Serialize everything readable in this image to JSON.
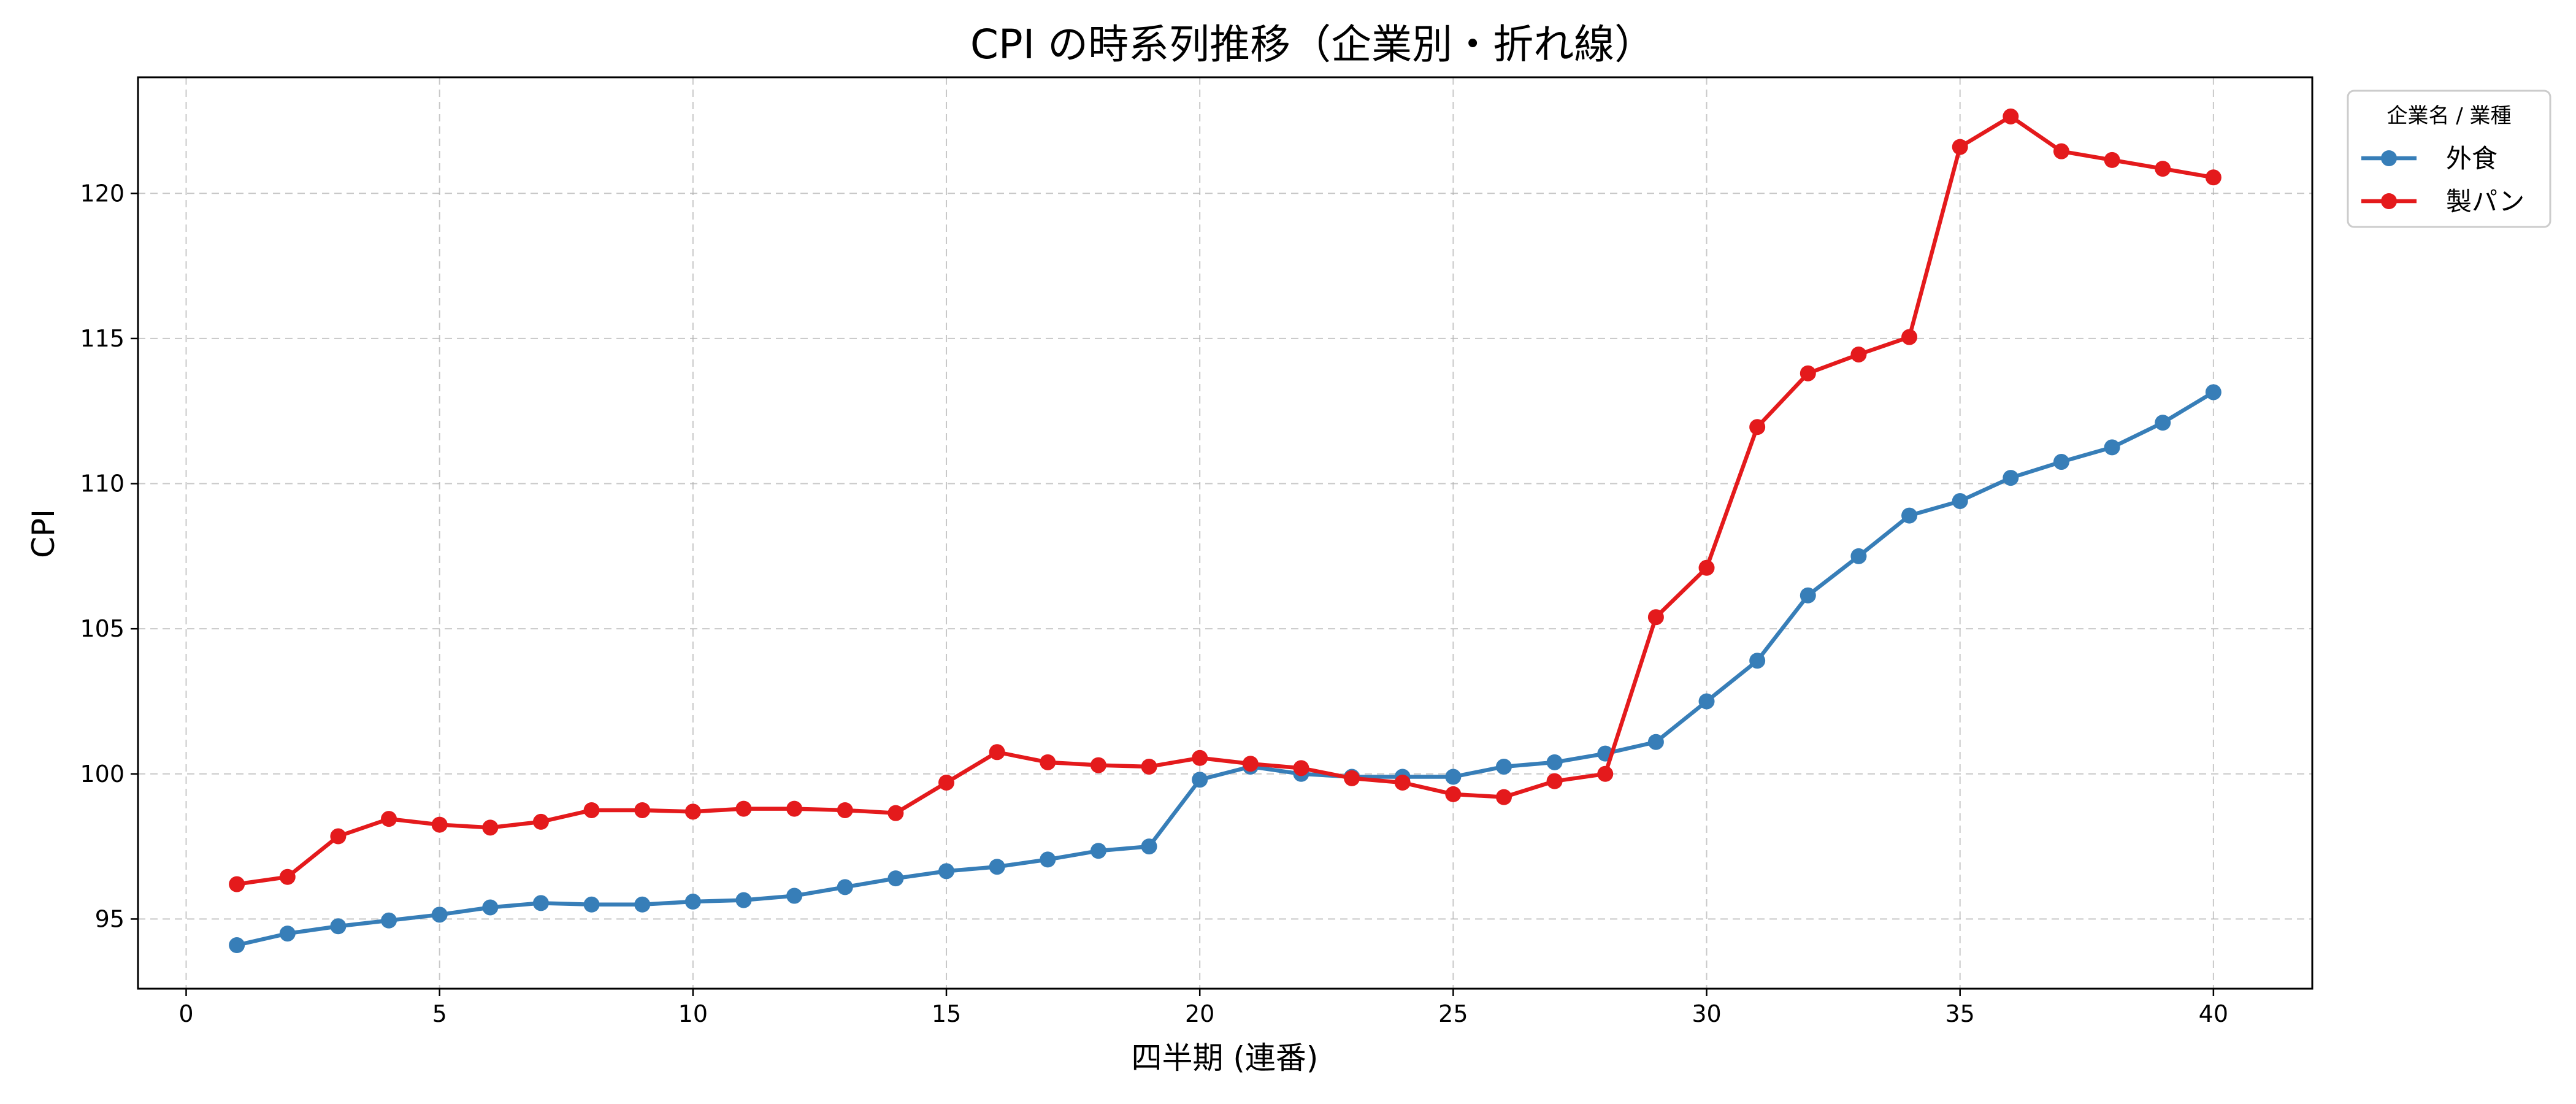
{
  "chart_data": {
    "type": "line",
    "title": "CPI の時系列推移（企業別・折れ線）",
    "xlabel": "四半期 (連番)",
    "ylabel": "CPI",
    "xlim": [
      -0.95,
      41.95
    ],
    "ylim": [
      92.6,
      124.0
    ],
    "xticks": [
      0,
      5,
      10,
      15,
      20,
      25,
      30,
      35,
      40
    ],
    "yticks": [
      95,
      100,
      105,
      110,
      115,
      120
    ],
    "grid": true,
    "legend": {
      "title": "企業名 / 業種",
      "position": "outside-top-right"
    },
    "x": [
      1,
      2,
      3,
      4,
      5,
      6,
      7,
      8,
      9,
      10,
      11,
      12,
      13,
      14,
      15,
      16,
      17,
      18,
      19,
      20,
      21,
      22,
      23,
      24,
      25,
      26,
      27,
      28,
      29,
      30,
      31,
      32,
      33,
      34,
      35,
      36,
      37,
      38,
      39,
      40
    ],
    "series": [
      {
        "name": "外食",
        "color": "#377eb8",
        "values": [
          94.1,
          94.5,
          94.75,
          94.95,
          95.15,
          95.4,
          95.55,
          95.5,
          95.5,
          95.6,
          95.65,
          95.8,
          96.1,
          96.4,
          96.65,
          96.8,
          97.05,
          97.35,
          97.5,
          99.8,
          100.25,
          100.0,
          99.9,
          99.9,
          99.9,
          100.25,
          100.4,
          100.7,
          101.1,
          102.5,
          103.9,
          106.15,
          107.5,
          108.9,
          109.4,
          110.2,
          110.75,
          111.25,
          112.1,
          113.15
        ]
      },
      {
        "name": "製パン",
        "color": "#e41a1c",
        "values": [
          96.2,
          96.45,
          97.85,
          98.45,
          98.25,
          98.15,
          98.35,
          98.75,
          98.75,
          98.7,
          98.8,
          98.8,
          98.75,
          98.65,
          99.7,
          100.75,
          100.4,
          100.3,
          100.25,
          100.55,
          100.35,
          100.2,
          99.85,
          99.7,
          99.3,
          99.2,
          99.75,
          100.0,
          105.4,
          107.1,
          111.95,
          113.8,
          114.45,
          115.05,
          121.6,
          122.65,
          121.45,
          121.15,
          120.85,
          120.55
        ]
      }
    ]
  }
}
